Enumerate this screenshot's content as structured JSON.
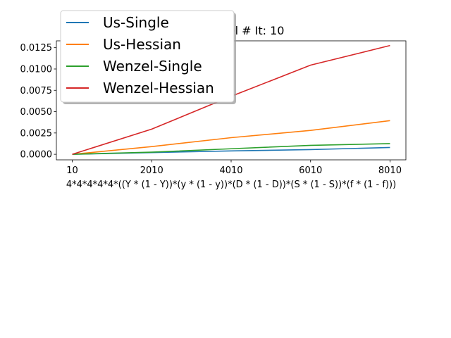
{
  "chart_data": {
    "type": "line",
    "title": "vs. Wenzel # It: 10",
    "xlabel": "4*4*4*4*4*((Y * (1 - Y))*(y * (1 - y))*(D * (1 - D))*(S * (1 - S))*(f * (1 - f)))",
    "ylabel": "",
    "x": [
      10,
      2010,
      4010,
      6010,
      8010
    ],
    "x_tick_labels": [
      "10",
      "2010",
      "4010",
      "6010",
      "8010"
    ],
    "y_tick_values": [
      0,
      0.0025,
      0.005,
      0.0075,
      0.01,
      0.0125
    ],
    "y_tick_labels": [
      "0.0000",
      "0.0025",
      "0.0050",
      "0.0075",
      "0.0100",
      "0.0125"
    ],
    "xlim": [
      -390,
      8410
    ],
    "ylim": [
      -0.00065,
      0.0133
    ],
    "grid": false,
    "legend_position": "upper-left",
    "series": [
      {
        "name": "Us-Single",
        "color": "#1f77b4",
        "values": [
          0.0,
          0.0002,
          0.0004,
          0.00055,
          0.0008
        ]
      },
      {
        "name": "Us-Hessian",
        "color": "#ff7f0e",
        "values": [
          0.0,
          0.0009,
          0.00195,
          0.0028,
          0.00395
        ]
      },
      {
        "name": "Wenzel-Single",
        "color": "#2ca02c",
        "values": [
          0.0,
          0.00025,
          0.00065,
          0.00105,
          0.00125
        ]
      },
      {
        "name": "Wenzel-Hessian",
        "color": "#d62728",
        "values": [
          0.0,
          0.00295,
          0.0068,
          0.01045,
          0.01275
        ]
      }
    ]
  }
}
